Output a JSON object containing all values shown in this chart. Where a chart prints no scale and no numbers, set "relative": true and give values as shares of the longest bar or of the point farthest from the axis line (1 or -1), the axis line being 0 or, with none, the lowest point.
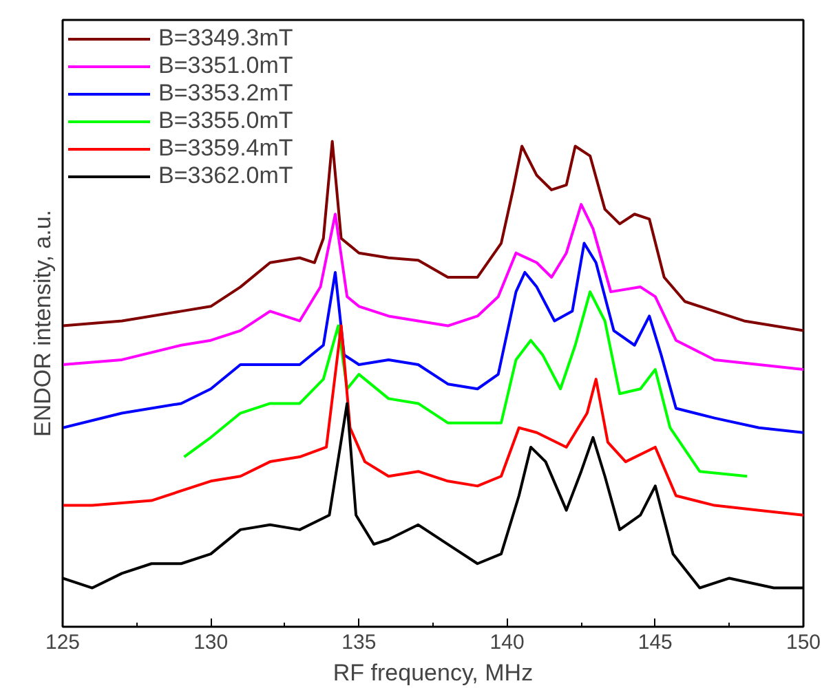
{
  "chart_data": {
    "type": "line",
    "xlabel": "RF frequency, MHz",
    "ylabel": "ENDOR intensity, a.u.",
    "relative": true,
    "xlim": [
      125,
      150
    ],
    "xticks": [
      125,
      130,
      135,
      140,
      145,
      150
    ],
    "grid": false,
    "legend": "top left",
    "marker": "none",
    "line_style": "solid",
    "series": [
      {
        "name": "B=3349.3mT",
        "color": "#800000",
        "x": [
          125,
          127,
          129,
          130,
          131,
          132,
          133,
          133.5,
          133.8,
          134.1,
          134.4,
          135,
          136,
          137,
          138,
          139,
          139.8,
          140.2,
          140.5,
          141,
          141.5,
          142,
          142.3,
          142.8,
          143.3,
          143.8,
          144.3,
          144.8,
          145.3,
          146,
          147,
          148,
          149,
          150
        ],
        "values": [
          0.62,
          0.63,
          0.65,
          0.66,
          0.7,
          0.75,
          0.76,
          0.75,
          0.8,
          1.0,
          0.8,
          0.77,
          0.76,
          0.755,
          0.72,
          0.72,
          0.79,
          0.9,
          0.99,
          0.93,
          0.9,
          0.91,
          0.99,
          0.97,
          0.86,
          0.83,
          0.85,
          0.84,
          0.72,
          0.67,
          0.65,
          0.63,
          0.62,
          0.61
        ]
      },
      {
        "name": "B=3351.0mT",
        "color": "#ff00ff",
        "x": [
          125,
          127,
          129,
          130,
          131,
          132,
          133,
          133.7,
          134.2,
          134.6,
          135,
          136,
          137,
          138,
          139,
          139.7,
          140.3,
          141,
          141.5,
          142,
          142.5,
          142.9,
          143.5,
          144.5,
          145,
          145.7,
          147,
          148.5,
          150
        ],
        "values": [
          0.54,
          0.55,
          0.58,
          0.59,
          0.61,
          0.65,
          0.63,
          0.7,
          0.85,
          0.68,
          0.66,
          0.64,
          0.63,
          0.62,
          0.64,
          0.68,
          0.77,
          0.75,
          0.72,
          0.77,
          0.87,
          0.82,
          0.69,
          0.7,
          0.68,
          0.59,
          0.55,
          0.54,
          0.53
        ]
      },
      {
        "name": "B=3353.2mT",
        "color": "#0000ff",
        "x": [
          125,
          127,
          129,
          130,
          131,
          132,
          133,
          133.8,
          134.2,
          134.5,
          135,
          136,
          137,
          138,
          139,
          139.7,
          140.3,
          140.6,
          141,
          141.6,
          142.2,
          142.6,
          143,
          143.6,
          144.3,
          144.8,
          145.2,
          145.7,
          147,
          148.5,
          150
        ],
        "values": [
          0.41,
          0.44,
          0.46,
          0.49,
          0.54,
          0.54,
          0.54,
          0.58,
          0.73,
          0.56,
          0.54,
          0.55,
          0.54,
          0.5,
          0.49,
          0.52,
          0.69,
          0.73,
          0.7,
          0.63,
          0.65,
          0.79,
          0.75,
          0.61,
          0.58,
          0.64,
          0.56,
          0.45,
          0.43,
          0.41,
          0.4
        ]
      },
      {
        "name": "B=3355.0mT",
        "color": "#00ff00",
        "x": [
          129.1,
          130,
          131,
          132,
          133,
          133.8,
          134.3,
          134.6,
          135,
          136,
          137,
          138,
          139,
          139.8,
          140.3,
          140.8,
          141.2,
          141.8,
          142.3,
          142.8,
          143.3,
          143.8,
          144.5,
          145,
          145.5,
          146.5,
          148.1
        ],
        "values": [
          0.35,
          0.39,
          0.44,
          0.46,
          0.46,
          0.51,
          0.62,
          0.49,
          0.52,
          0.47,
          0.46,
          0.42,
          0.42,
          0.42,
          0.55,
          0.59,
          0.56,
          0.49,
          0.58,
          0.69,
          0.63,
          0.48,
          0.49,
          0.53,
          0.41,
          0.32,
          0.31
        ]
      },
      {
        "name": "B=3359.4mT",
        "color": "#ff0000",
        "x": [
          125,
          126,
          128,
          130,
          131,
          132,
          133,
          133.9,
          134.4,
          134.7,
          135.2,
          136,
          137,
          138,
          139,
          139.8,
          140.4,
          141,
          142,
          142.7,
          143,
          143.4,
          144,
          145,
          145.7,
          147,
          148.5,
          150
        ],
        "values": [
          0.25,
          0.25,
          0.26,
          0.3,
          0.31,
          0.34,
          0.35,
          0.37,
          0.62,
          0.41,
          0.34,
          0.31,
          0.32,
          0.3,
          0.29,
          0.31,
          0.41,
          0.4,
          0.37,
          0.44,
          0.51,
          0.38,
          0.34,
          0.37,
          0.27,
          0.25,
          0.24,
          0.23
        ]
      },
      {
        "name": "B=3362.0mT",
        "color": "#000000",
        "x": [
          125,
          126,
          127,
          128,
          129,
          130,
          131,
          132,
          133,
          134,
          134.6,
          134.9,
          135.5,
          136,
          137,
          138,
          139,
          139.8,
          140.4,
          140.8,
          141.3,
          142,
          142.5,
          142.9,
          143.3,
          143.8,
          144.5,
          145,
          145.6,
          146.5,
          147.5,
          149,
          150
        ],
        "values": [
          0.1,
          0.08,
          0.11,
          0.13,
          0.13,
          0.15,
          0.2,
          0.21,
          0.2,
          0.23,
          0.46,
          0.23,
          0.17,
          0.18,
          0.21,
          0.17,
          0.13,
          0.15,
          0.27,
          0.37,
          0.34,
          0.24,
          0.32,
          0.39,
          0.31,
          0.2,
          0.23,
          0.29,
          0.15,
          0.08,
          0.1,
          0.08,
          0.08
        ]
      }
    ]
  }
}
